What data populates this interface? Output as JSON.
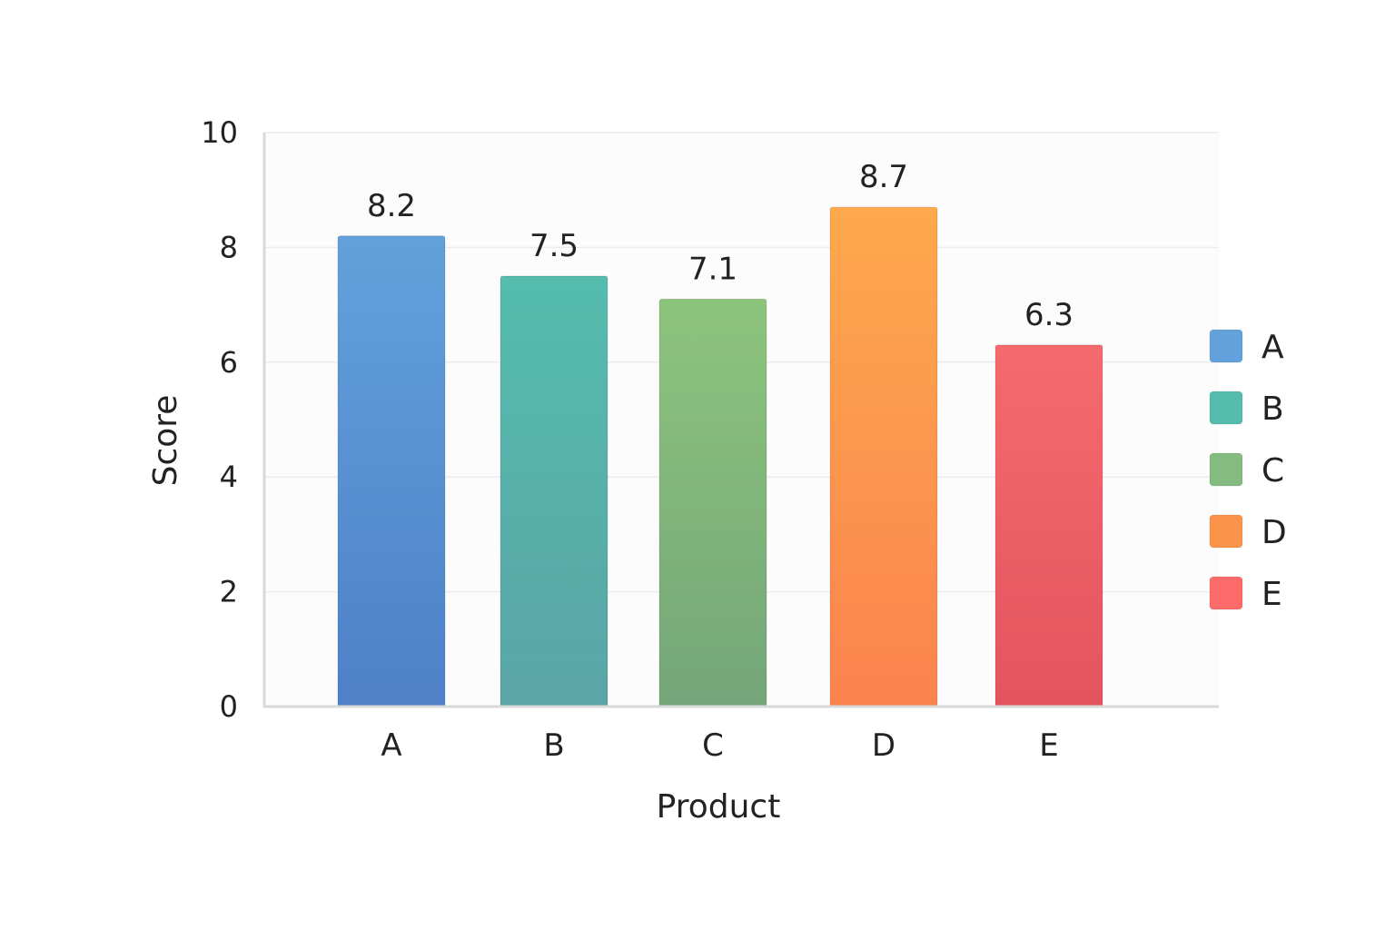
{
  "chart_data": {
    "type": "bar",
    "title": "",
    "xlabel": "Product",
    "ylabel": "Score",
    "ylim": [
      0,
      10
    ],
    "yticks": [
      0,
      2,
      4,
      6,
      8,
      10
    ],
    "categories": [
      "A",
      "B",
      "C",
      "D",
      "E"
    ],
    "values": [
      8.2,
      7.5,
      7.1,
      8.7,
      6.3
    ],
    "value_labels": [
      "8.2",
      "7.5",
      "7.1",
      "8.7",
      "6.3"
    ],
    "colors": [
      [
        "#62a1dc",
        "#4f80c8"
      ],
      [
        "#55bcae",
        "#5aa5a6"
      ],
      [
        "#8dc47c",
        "#74a67a"
      ],
      [
        "#fda94c",
        "#fb834f"
      ],
      [
        "#f56a6e",
        "#e4545f"
      ]
    ],
    "grid": true,
    "legend": {
      "placement": "right",
      "entries": [
        "A",
        "B",
        "C",
        "D",
        "E"
      ],
      "colors": [
        "#62a1dc",
        "#55bcae",
        "#84bb81",
        "#fb934a",
        "#fd6a6a"
      ]
    }
  }
}
